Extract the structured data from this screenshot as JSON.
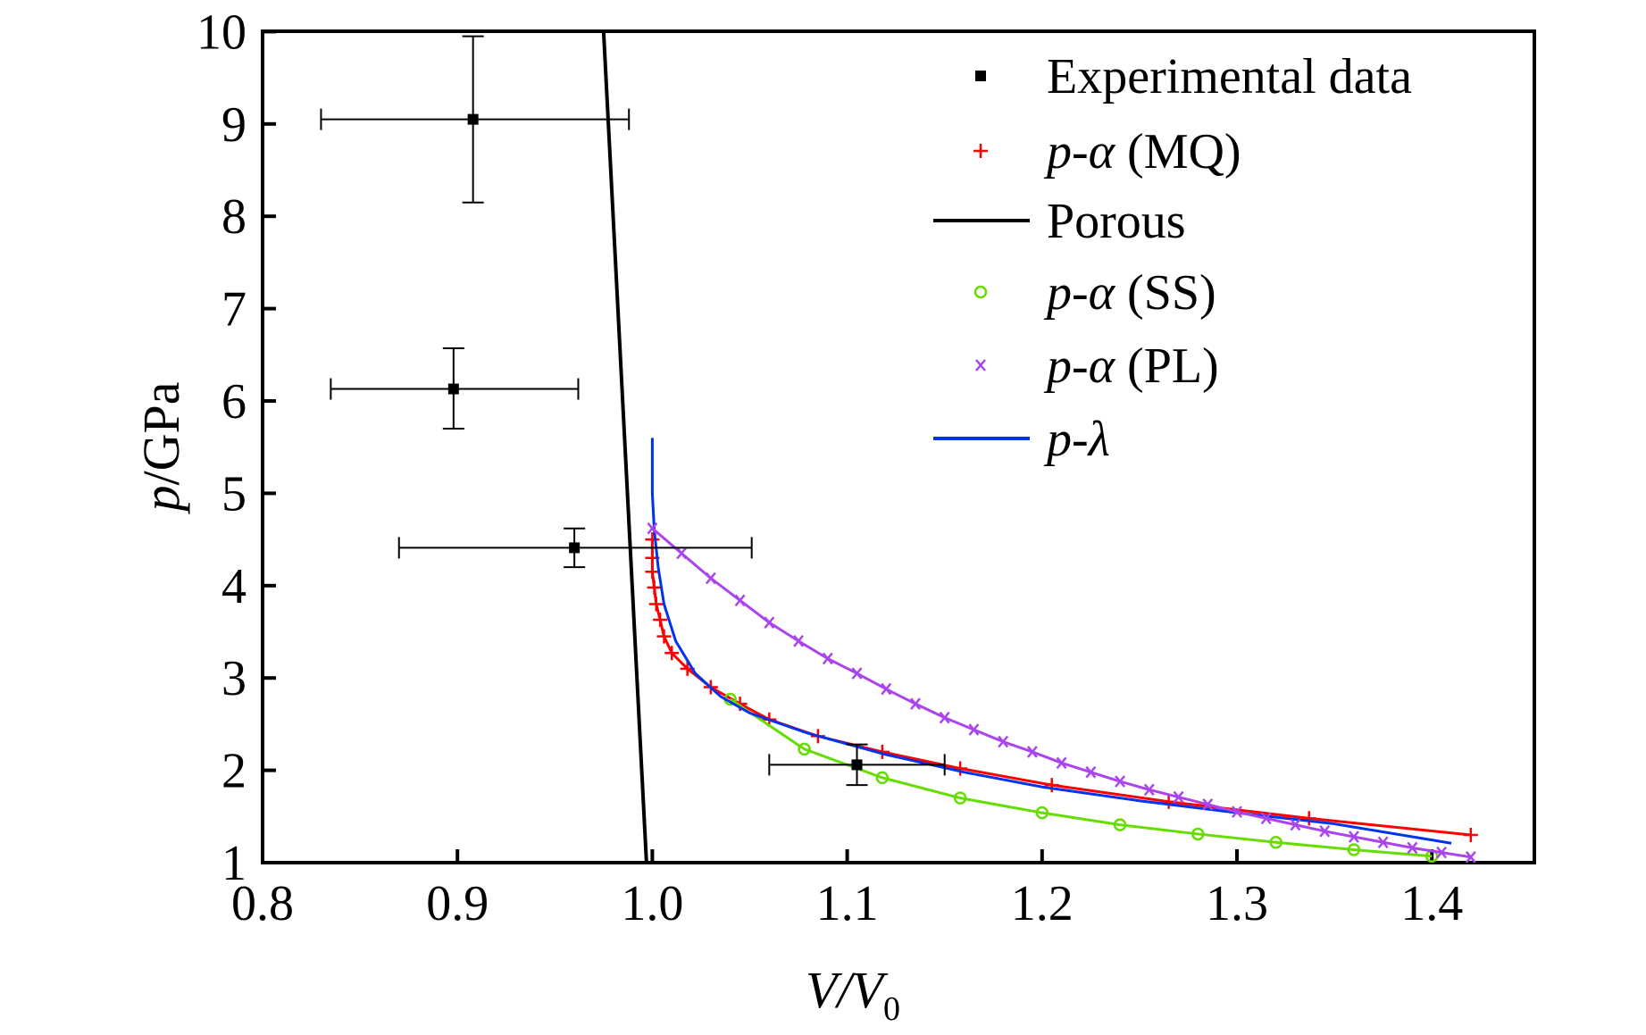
{
  "chart_data": {
    "type": "line",
    "title": "",
    "xlabel": {
      "main": "V/V",
      "sub": "0"
    },
    "ylabel": {
      "italic": "p",
      "rest": "/GPa"
    },
    "xlim": [
      0.8,
      1.45
    ],
    "ylim": [
      1,
      10
    ],
    "xticks": [
      "0.8",
      "0.9",
      "1.0",
      "1.1",
      "1.2",
      "1.3",
      "1.4"
    ],
    "yticks": [
      "1",
      "2",
      "3",
      "4",
      "5",
      "6",
      "7",
      "8",
      "9",
      "10"
    ],
    "grid": false,
    "legend_position": "top-right",
    "series": [
      {
        "name": "Experimental data",
        "label_italic": "",
        "label_rest": "Experimental data",
        "color": "#000000",
        "marker": "square",
        "line": false,
        "points": [
          {
            "x": 0.908,
            "y": 9.05,
            "xerr": [
              0.83,
              0.988
            ],
            "yerr": [
              8.15,
              9.95
            ]
          },
          {
            "x": 0.898,
            "y": 6.13,
            "xerr": [
              0.835,
              0.962
            ],
            "yerr": [
              5.7,
              6.57
            ]
          },
          {
            "x": 0.96,
            "y": 4.41,
            "xerr": [
              0.87,
              1.051
            ],
            "yerr": [
              4.2,
              4.62
            ]
          },
          {
            "x": 1.105,
            "y": 2.06,
            "xerr": [
              1.06,
              1.15
            ],
            "yerr": [
              1.84,
              2.28
            ]
          }
        ]
      },
      {
        "name": "p-α (MQ)",
        "label_italic": "p-α",
        "label_rest": " (MQ)",
        "color": "#ff0000",
        "marker": "plus",
        "line": true,
        "x": [
          1.0,
          1.0,
          1.0,
          1.001,
          1.002,
          1.004,
          1.006,
          1.01,
          1.018,
          1.03,
          1.045,
          1.06,
          1.085,
          1.118,
          1.158,
          1.205,
          1.265,
          1.337,
          1.42
        ],
        "y": [
          4.5,
          4.3,
          4.15,
          3.98,
          3.8,
          3.63,
          3.45,
          3.27,
          3.1,
          2.9,
          2.72,
          2.55,
          2.37,
          2.2,
          2.02,
          1.84,
          1.66,
          1.48,
          1.3
        ]
      },
      {
        "name": "Porous",
        "label_italic": "",
        "label_rest": "Porous",
        "color": "#000000",
        "marker": "none",
        "line": true,
        "x": [
          0.975,
          0.997
        ],
        "y": [
          10,
          1
        ]
      },
      {
        "name": "p-α (SS)",
        "label_italic": "p-α",
        "label_rest": " (SS)",
        "color": "#66dd00",
        "marker": "circle",
        "line": true,
        "x": [
          1.04,
          1.078,
          1.118,
          1.158,
          1.2,
          1.24,
          1.28,
          1.32,
          1.36,
          1.4
        ],
        "y": [
          2.77,
          2.23,
          1.92,
          1.7,
          1.54,
          1.41,
          1.31,
          1.22,
          1.14,
          1.07
        ]
      },
      {
        "name": "p-α (PL)",
        "label_italic": "p-α",
        "label_rest": " (PL)",
        "color": "#aa44ee",
        "marker": "x",
        "line": true,
        "x": [
          1.0,
          1.015,
          1.03,
          1.045,
          1.06,
          1.075,
          1.09,
          1.105,
          1.12,
          1.135,
          1.15,
          1.165,
          1.18,
          1.195,
          1.21,
          1.225,
          1.24,
          1.255,
          1.27,
          1.285,
          1.3,
          1.315,
          1.33,
          1.345,
          1.36,
          1.375,
          1.39,
          1.405,
          1.42
        ],
        "y": [
          4.62,
          4.35,
          4.08,
          3.84,
          3.6,
          3.4,
          3.21,
          3.05,
          2.88,
          2.72,
          2.57,
          2.44,
          2.31,
          2.2,
          2.08,
          1.98,
          1.88,
          1.79,
          1.71,
          1.63,
          1.55,
          1.48,
          1.41,
          1.34,
          1.28,
          1.22,
          1.16,
          1.11,
          1.06
        ]
      },
      {
        "name": "p-λ",
        "label_italic": "p-λ",
        "label_rest": "",
        "color": "#0033ee",
        "marker": "none",
        "line": true,
        "x": [
          1.0,
          1.0,
          1.001,
          1.003,
          1.006,
          1.012,
          1.022,
          1.035,
          1.05,
          1.08,
          1.12,
          1.16,
          1.2,
          1.25,
          1.3,
          1.35,
          1.41
        ],
        "y": [
          5.6,
          5.0,
          4.6,
          4.2,
          3.8,
          3.4,
          3.05,
          2.8,
          2.62,
          2.4,
          2.17,
          1.98,
          1.82,
          1.67,
          1.54,
          1.42,
          1.21
        ]
      }
    ]
  }
}
